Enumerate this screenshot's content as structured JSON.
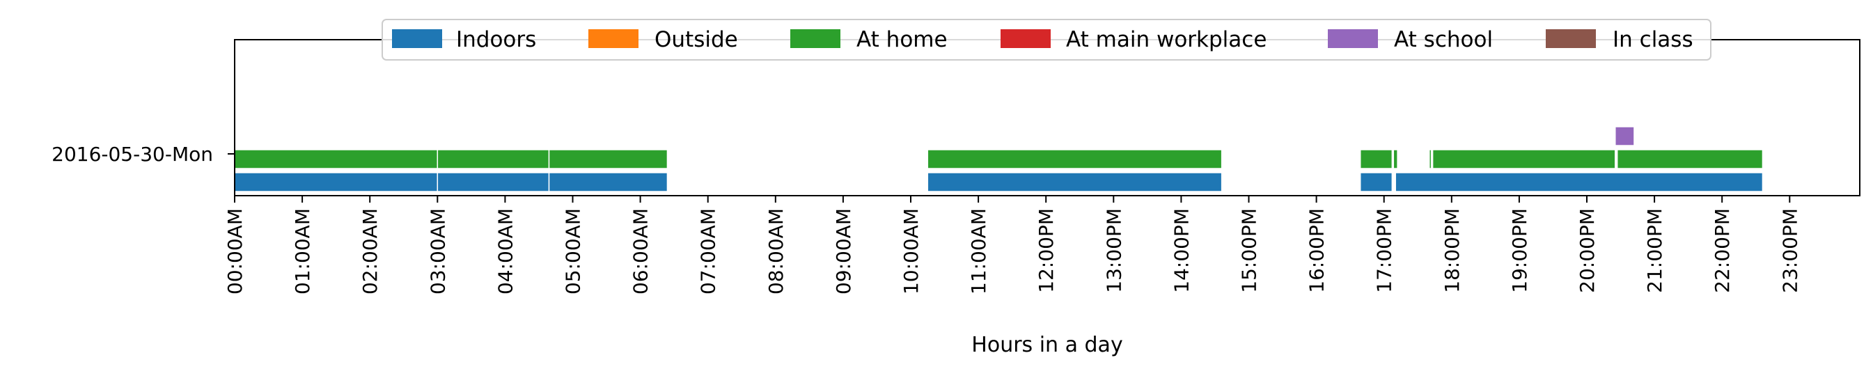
{
  "chart_data": {
    "type": "timeline",
    "xlabel": "Hours in a day",
    "ylabel": "",
    "xlim": [
      0,
      24
    ],
    "x_ticks": [
      {
        "value": 0,
        "label": "00:00AM"
      },
      {
        "value": 1,
        "label": "01:00AM"
      },
      {
        "value": 2,
        "label": "02:00AM"
      },
      {
        "value": 3,
        "label": "03:00AM"
      },
      {
        "value": 4,
        "label": "04:00AM"
      },
      {
        "value": 5,
        "label": "05:00AM"
      },
      {
        "value": 6,
        "label": "06:00AM"
      },
      {
        "value": 7,
        "label": "07:00AM"
      },
      {
        "value": 8,
        "label": "08:00AM"
      },
      {
        "value": 9,
        "label": "09:00AM"
      },
      {
        "value": 10,
        "label": "10:00AM"
      },
      {
        "value": 11,
        "label": "11:00AM"
      },
      {
        "value": 12,
        "label": "12:00PM"
      },
      {
        "value": 13,
        "label": "13:00PM"
      },
      {
        "value": 14,
        "label": "14:00PM"
      },
      {
        "value": 15,
        "label": "15:00PM"
      },
      {
        "value": 16,
        "label": "16:00PM"
      },
      {
        "value": 17,
        "label": "17:00PM"
      },
      {
        "value": 18,
        "label": "18:00PM"
      },
      {
        "value": 19,
        "label": "19:00PM"
      },
      {
        "value": 20,
        "label": "20:00PM"
      },
      {
        "value": 21,
        "label": "21:00PM"
      },
      {
        "value": 22,
        "label": "22:00PM"
      },
      {
        "value": 23,
        "label": "23:00PM"
      }
    ],
    "row_label": "2016-05-30-Mon",
    "grid": false,
    "legend_position": "top-center",
    "series": [
      {
        "name": "Indoors",
        "color": "#1f77b4",
        "segments": [
          [
            0,
            3.0
          ],
          [
            3.0,
            4.65
          ],
          [
            4.65,
            6.4
          ],
          [
            10.25,
            14.6
          ],
          [
            16.65,
            17.12
          ],
          [
            17.17,
            22.6
          ]
        ]
      },
      {
        "name": "Outside",
        "color": "#ff7f0e",
        "segments": []
      },
      {
        "name": "At home",
        "color": "#2ca02c",
        "segments": [
          [
            0,
            3.0
          ],
          [
            3.0,
            4.65
          ],
          [
            4.65,
            6.4
          ],
          [
            10.25,
            14.6
          ],
          [
            16.65,
            17.12
          ],
          [
            17.14,
            17.2
          ],
          [
            17.67,
            17.7
          ],
          [
            17.72,
            20.42
          ],
          [
            20.45,
            22.6
          ]
        ]
      },
      {
        "name": "At main workplace",
        "color": "#d62728",
        "segments": []
      },
      {
        "name": "At school",
        "color": "#9467bd",
        "segments": [
          [
            20.42,
            20.7
          ]
        ]
      },
      {
        "name": "In class",
        "color": "#8c564b",
        "segments": []
      }
    ]
  }
}
